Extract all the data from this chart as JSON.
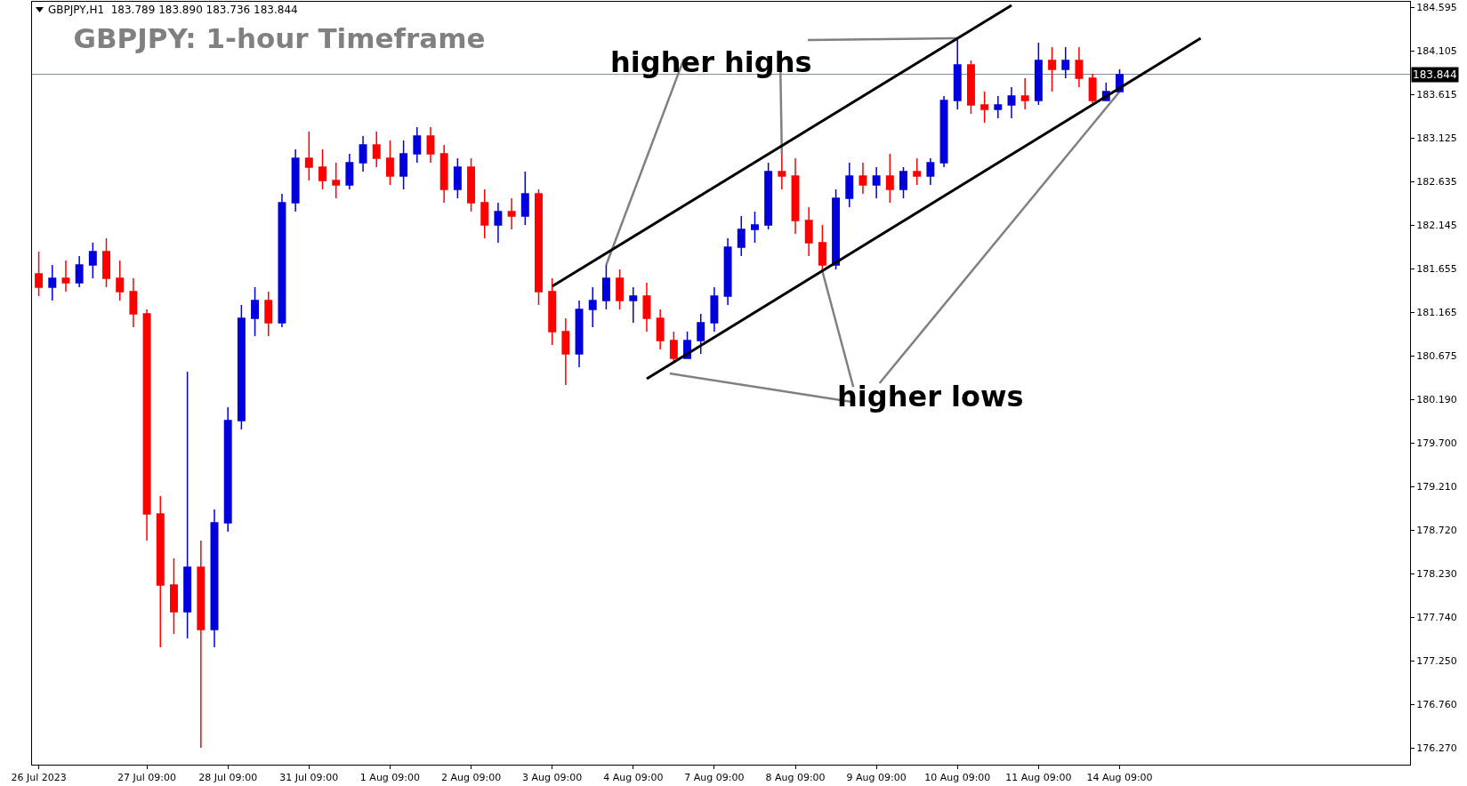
{
  "chart_data": {
    "type": "candlestick",
    "title": "GBPJPY: 1-hour Timeframe",
    "subtitle": "GBPJPY,H1  183.789 183.890 183.736 183.844",
    "annotations": [
      {
        "text": "higher highs",
        "x": "10 Aug 09:00",
        "y": 184.25
      },
      {
        "text": "higher lows",
        "x": "14 Aug 09:00",
        "y": 183.65
      }
    ],
    "categories": [
      "26 Jul 2023",
      null,
      null,
      null,
      null,
      null,
      null,
      null,
      "27 Jul 09:00",
      null,
      null,
      null,
      null,
      null,
      "28 Jul 09:00",
      null,
      null,
      null,
      null,
      null,
      "31 Jul 09:00",
      null,
      null,
      null,
      null,
      null,
      "1 Aug 09:00",
      null,
      null,
      null,
      null,
      null,
      "2 Aug 09:00",
      null,
      null,
      null,
      null,
      null,
      "3 Aug 09:00",
      null,
      null,
      null,
      null,
      null,
      "4 Aug 09:00",
      null,
      null,
      null,
      null,
      null,
      "7 Aug 09:00",
      null,
      null,
      null,
      null,
      null,
      "8 Aug 09:00",
      null,
      null,
      null,
      null,
      null,
      "9 Aug 09:00",
      null,
      null,
      null,
      null,
      null,
      "10 Aug 09:00",
      null,
      null,
      null,
      null,
      null,
      "11 Aug 09:00",
      null,
      null,
      null,
      null,
      null,
      "14 Aug 09:00",
      null,
      null,
      null,
      null,
      null,
      null,
      null,
      null,
      null,
      null,
      null,
      null,
      null,
      null,
      null,
      null,
      null,
      null,
      null,
      null,
      null
    ],
    "ohlc": [
      [
        181.6,
        181.85,
        181.35,
        181.45
      ],
      [
        181.45,
        181.7,
        181.3,
        181.55
      ],
      [
        181.55,
        181.75,
        181.4,
        181.5
      ],
      [
        181.5,
        181.8,
        181.45,
        181.7
      ],
      [
        181.7,
        181.95,
        181.55,
        181.85
      ],
      [
        181.85,
        182.0,
        181.45,
        181.55
      ],
      [
        181.55,
        181.75,
        181.3,
        181.4
      ],
      [
        181.4,
        181.55,
        181.0,
        181.15
      ],
      [
        181.15,
        181.2,
        178.6,
        178.9
      ],
      [
        178.9,
        179.1,
        177.4,
        178.1
      ],
      [
        178.1,
        178.4,
        177.55,
        177.8
      ],
      [
        177.8,
        180.5,
        177.5,
        178.3
      ],
      [
        178.3,
        178.6,
        176.27,
        177.6
      ],
      [
        177.6,
        178.95,
        177.4,
        178.8
      ],
      [
        178.8,
        180.1,
        178.7,
        179.95
      ],
      [
        179.95,
        181.25,
        179.85,
        181.1
      ],
      [
        181.1,
        181.45,
        180.9,
        181.3
      ],
      [
        181.3,
        181.4,
        180.9,
        181.05
      ],
      [
        181.05,
        182.5,
        181.0,
        182.4
      ],
      [
        182.4,
        183.0,
        182.3,
        182.9
      ],
      [
        182.9,
        183.2,
        182.65,
        182.8
      ],
      [
        182.8,
        183.0,
        182.55,
        182.65
      ],
      [
        182.65,
        182.85,
        182.45,
        182.6
      ],
      [
        182.6,
        182.95,
        182.55,
        182.85
      ],
      [
        182.85,
        183.15,
        182.75,
        183.05
      ],
      [
        183.05,
        183.2,
        182.8,
        182.9
      ],
      [
        182.9,
        183.1,
        182.6,
        182.7
      ],
      [
        182.7,
        183.1,
        182.55,
        182.95
      ],
      [
        182.95,
        183.25,
        182.85,
        183.15
      ],
      [
        183.15,
        183.25,
        182.85,
        182.95
      ],
      [
        182.95,
        183.05,
        182.4,
        182.55
      ],
      [
        182.55,
        182.9,
        182.45,
        182.8
      ],
      [
        182.8,
        182.9,
        182.3,
        182.4
      ],
      [
        182.4,
        182.55,
        182.0,
        182.15
      ],
      [
        182.15,
        182.4,
        181.95,
        182.3
      ],
      [
        182.3,
        182.45,
        182.1,
        182.25
      ],
      [
        182.25,
        182.75,
        182.15,
        182.5
      ],
      [
        182.5,
        182.55,
        181.25,
        181.4
      ],
      [
        181.4,
        181.55,
        180.8,
        180.95
      ],
      [
        180.95,
        181.1,
        180.35,
        180.7
      ],
      [
        180.7,
        181.3,
        180.55,
        181.2
      ],
      [
        181.2,
        181.45,
        181.0,
        181.3
      ],
      [
        181.3,
        181.7,
        181.2,
        181.55
      ],
      [
        181.55,
        181.65,
        181.2,
        181.3
      ],
      [
        181.3,
        181.45,
        181.05,
        181.35
      ],
      [
        181.35,
        181.5,
        180.95,
        181.1
      ],
      [
        181.1,
        181.2,
        180.75,
        180.85
      ],
      [
        180.85,
        180.95,
        180.6,
        180.65
      ],
      [
        180.65,
        180.95,
        180.65,
        180.85
      ],
      [
        180.85,
        181.15,
        180.7,
        181.05
      ],
      [
        181.05,
        181.45,
        180.95,
        181.35
      ],
      [
        181.35,
        182.0,
        181.25,
        181.9
      ],
      [
        181.9,
        182.25,
        181.8,
        182.1
      ],
      [
        182.1,
        182.3,
        181.95,
        182.15
      ],
      [
        182.15,
        182.85,
        182.1,
        182.75
      ],
      [
        182.75,
        182.95,
        182.55,
        182.7
      ],
      [
        182.7,
        182.9,
        182.05,
        182.2
      ],
      [
        182.2,
        182.35,
        181.8,
        181.95
      ],
      [
        181.95,
        182.15,
        181.63,
        181.7
      ],
      [
        181.7,
        182.55,
        181.65,
        182.45
      ],
      [
        182.45,
        182.85,
        182.35,
        182.7
      ],
      [
        182.7,
        182.85,
        182.5,
        182.6
      ],
      [
        182.6,
        182.8,
        182.45,
        182.7
      ],
      [
        182.7,
        182.95,
        182.4,
        182.55
      ],
      [
        182.55,
        182.8,
        182.45,
        182.75
      ],
      [
        182.75,
        182.9,
        182.6,
        182.7
      ],
      [
        182.7,
        182.9,
        182.6,
        182.85
      ],
      [
        182.85,
        183.6,
        182.8,
        183.55
      ],
      [
        183.55,
        184.25,
        183.45,
        183.95
      ],
      [
        183.95,
        184.0,
        183.4,
        183.5
      ],
      [
        183.5,
        183.65,
        183.3,
        183.45
      ],
      [
        183.45,
        183.6,
        183.35,
        183.5
      ],
      [
        183.5,
        183.7,
        183.35,
        183.6
      ],
      [
        183.6,
        183.8,
        183.45,
        183.55
      ],
      [
        183.55,
        184.2,
        183.5,
        184.0
      ],
      [
        184.0,
        184.15,
        183.65,
        183.9
      ],
      [
        183.9,
        184.15,
        183.8,
        184.0
      ],
      [
        184.0,
        184.15,
        183.7,
        183.8
      ],
      [
        183.8,
        183.85,
        183.52,
        183.55
      ],
      [
        183.55,
        183.75,
        183.55,
        183.65
      ],
      [
        183.65,
        183.9,
        183.65,
        183.84
      ],
      null,
      null,
      null,
      null,
      null,
      null,
      null,
      null,
      null,
      null,
      null,
      null,
      null,
      null,
      null,
      null,
      null,
      null,
      null,
      null,
      null
    ],
    "colors": [
      "#ff0000",
      "#0000dd",
      "#ff0000",
      "#0000dd",
      "#0000dd",
      "#ff0000",
      "#ff0000",
      "#ff0000",
      "#ff0000",
      "#ff0000",
      "#ff0000",
      "#0000dd",
      "#ff0000",
      "#0000dd",
      "#0000dd",
      "#0000dd",
      "#0000dd",
      "#ff0000",
      "#0000dd",
      "#0000dd",
      "#ff0000",
      "#ff0000",
      "#ff0000",
      "#0000dd",
      "#0000dd",
      "#ff0000",
      "#ff0000",
      "#0000dd",
      "#0000dd",
      "#ff0000",
      "#ff0000",
      "#0000dd",
      "#ff0000",
      "#ff0000",
      "#0000dd",
      "#ff0000",
      "#0000dd",
      "#ff0000",
      "#ff0000",
      "#ff0000",
      "#0000dd",
      "#0000dd",
      "#0000dd",
      "#ff0000",
      "#0000dd",
      "#ff0000",
      "#ff0000",
      "#ff0000",
      "#0000dd",
      "#0000dd",
      "#0000dd",
      "#0000dd",
      "#0000dd",
      "#0000dd",
      "#0000dd",
      "#ff0000",
      "#ff0000",
      "#ff0000",
      "#ff0000",
      "#0000dd",
      "#0000dd",
      "#ff0000",
      "#0000dd",
      "#ff0000",
      "#0000dd",
      "#ff0000",
      "#0000dd",
      "#0000dd",
      "#0000dd",
      "#ff0000",
      "#ff0000",
      "#0000dd",
      "#0000dd",
      "#ff0000",
      "#0000dd",
      "#ff0000",
      "#0000dd",
      "#ff0000",
      "#ff0000",
      "#0000dd",
      "#0000dd",
      null,
      null,
      null,
      null,
      null,
      null,
      null,
      null,
      null,
      null,
      null,
      null,
      null,
      null,
      null,
      null,
      null,
      null,
      null,
      null,
      null
    ],
    "series": [
      {
        "type": "line",
        "color": "#000000",
        "values": [
          null,
          null,
          null,
          null,
          null,
          null,
          null,
          null,
          null,
          null,
          null,
          null,
          null,
          null,
          null,
          null,
          null,
          null,
          null,
          null,
          null,
          null,
          null,
          null,
          null,
          null,
          null,
          null,
          null,
          null,
          null,
          null,
          null,
          null,
          null,
          null,
          null,
          null,
          181.46,
          null,
          null,
          null,
          null,
          null,
          null,
          null,
          null,
          null,
          null,
          null,
          null,
          null,
          null,
          null,
          null,
          null,
          null,
          null,
          null,
          null,
          null,
          null,
          null,
          null,
          null,
          null,
          null,
          null,
          null,
          null,
          null,
          null,
          184.62,
          null,
          null,
          null,
          null,
          null,
          null,
          null,
          null,
          null,
          null,
          null,
          null,
          null,
          null,
          null,
          null,
          null,
          null,
          null,
          null,
          null,
          null,
          null,
          null,
          null,
          null,
          null,
          null,
          null
        ]
      },
      {
        "type": "line",
        "color": "#000000",
        "values": [
          null,
          null,
          null,
          null,
          null,
          null,
          null,
          null,
          null,
          null,
          null,
          null,
          null,
          null,
          null,
          null,
          null,
          null,
          null,
          null,
          null,
          null,
          null,
          null,
          null,
          null,
          null,
          null,
          null,
          null,
          null,
          null,
          null,
          null,
          null,
          null,
          null,
          null,
          null,
          null,
          null,
          null,
          null,
          null,
          null,
          180.42,
          null,
          null,
          null,
          null,
          null,
          null,
          null,
          null,
          null,
          null,
          null,
          null,
          null,
          null,
          null,
          null,
          null,
          null,
          null,
          null,
          null,
          null,
          null,
          null,
          null,
          null,
          null,
          null,
          null,
          null,
          null,
          null,
          null,
          null,
          null,
          null,
          null,
          null,
          null,
          null,
          184.25,
          null,
          null,
          null,
          null,
          null,
          null,
          null,
          null,
          null,
          null,
          null,
          null,
          null,
          null,
          null
        ]
      }
    ],
    "ref_lines": [
      {
        "axis": "y",
        "value": 183.844,
        "label": "183.844",
        "color": "#778899"
      }
    ],
    "ylim": [
      176.08,
      184.66
    ],
    "yticks": [
      184.595,
      184.105,
      183.615,
      183.125,
      182.635,
      182.145,
      181.655,
      181.165,
      180.675,
      {
        "value": 180.19,
        "label": "180.190"
      },
      {
        "value": 179.7,
        "label": "179.700"
      },
      {
        "value": 179.21,
        "label": "179.210"
      },
      {
        "value": 178.72,
        "label": "178.720"
      },
      {
        "value": 178.23,
        "label": "178.230"
      },
      {
        "value": 177.74,
        "label": "177.740"
      },
      {
        "value": 177.25,
        "label": "177.250"
      },
      {
        "value": 176.76,
        "label": "176.760"
      },
      {
        "value": 176.27,
        "label": "176.270"
      }
    ]
  }
}
